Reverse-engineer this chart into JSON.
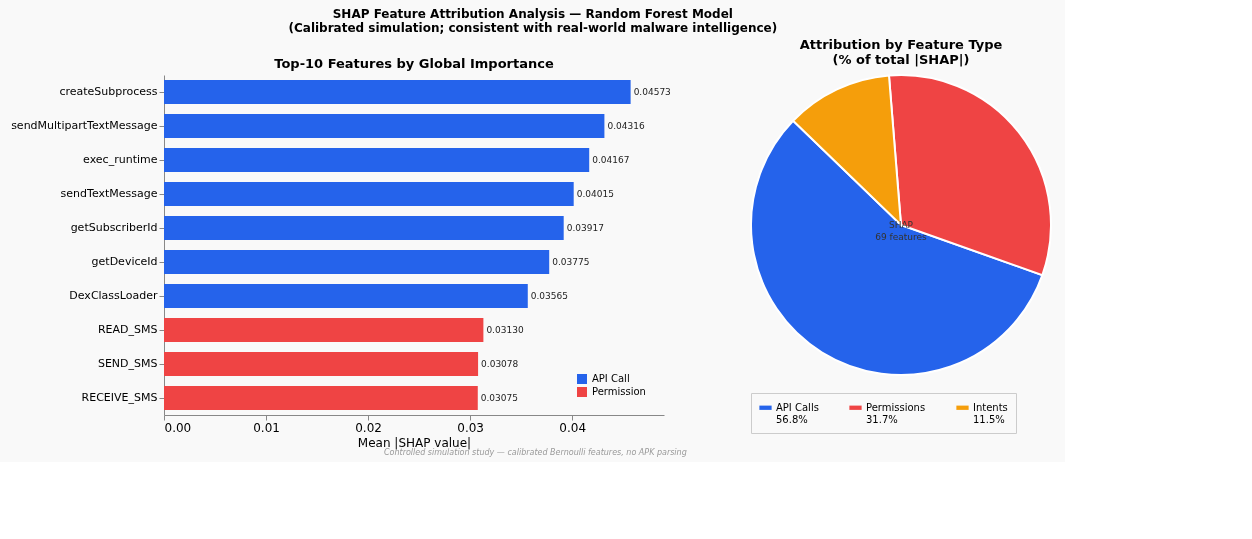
{
  "chart_data": [
    {
      "type": "bar",
      "orientation": "horizontal",
      "title": "Top-10 Features by Global Importance",
      "xlabel": "Mean |SHAP value|",
      "categories": [
        "createSubprocess",
        "sendMultipartTextMessage",
        "exec_runtime",
        "sendTextMessage",
        "getSubscriberId",
        "getDeviceId",
        "DexClassLoader",
        "READ_SMS",
        "SEND_SMS",
        "RECEIVE_SMS"
      ],
      "series": [
        {
          "name": "API Call",
          "color": "#2563eb",
          "values": [
            0.04573,
            0.04316,
            0.04167,
            0.04015,
            0.03917,
            0.03775,
            0.03565,
            null,
            null,
            null
          ]
        },
        {
          "name": "Permission",
          "color": "#ef4444",
          "values": [
            null,
            null,
            null,
            null,
            null,
            null,
            null,
            0.0313,
            0.03078,
            0.03075
          ]
        }
      ],
      "xlim": [
        0,
        0.049
      ],
      "xticks": [
        {
          "value": 0,
          "label": "0.00"
        },
        {
          "value": 0.01,
          "label": "0.01"
        },
        {
          "value": 0.02,
          "label": "0.02"
        },
        {
          "value": 0.03,
          "label": "0.03"
        },
        {
          "value": 0.04,
          "label": "0.04"
        }
      ],
      "value_labels": [
        "0.04573",
        "0.04316",
        "0.04167",
        "0.04015",
        "0.03917",
        "0.03775",
        "0.03565",
        "0.03130",
        "0.03078",
        "0.03075"
      ],
      "grid": false,
      "legend": "bottom right",
      "annotations": [
        "SHAP Feature Attribution Analysis — Random Forest Model",
        "(Calibrated simulation; consistent with real-world malware intelligence)",
        "Controlled simulation study — calibrated Bernoulli features, no APK parsing"
      ]
    },
    {
      "type": "pie",
      "title": "Attribution by Feature Type",
      "subtitle": "(% of total |SHAP|)",
      "categories": [
        "API Calls",
        "Permissions",
        "Intents"
      ],
      "values": [
        56.8,
        31.7,
        11.5
      ],
      "colors": [
        "#2563eb",
        "#ef4444",
        "#f59e0b"
      ],
      "value_labels": [
        "56.8%",
        "31.7%",
        "11.5%"
      ],
      "legend": "bottom",
      "annotations": [
        "SHAP",
        "69 features"
      ]
    }
  ]
}
